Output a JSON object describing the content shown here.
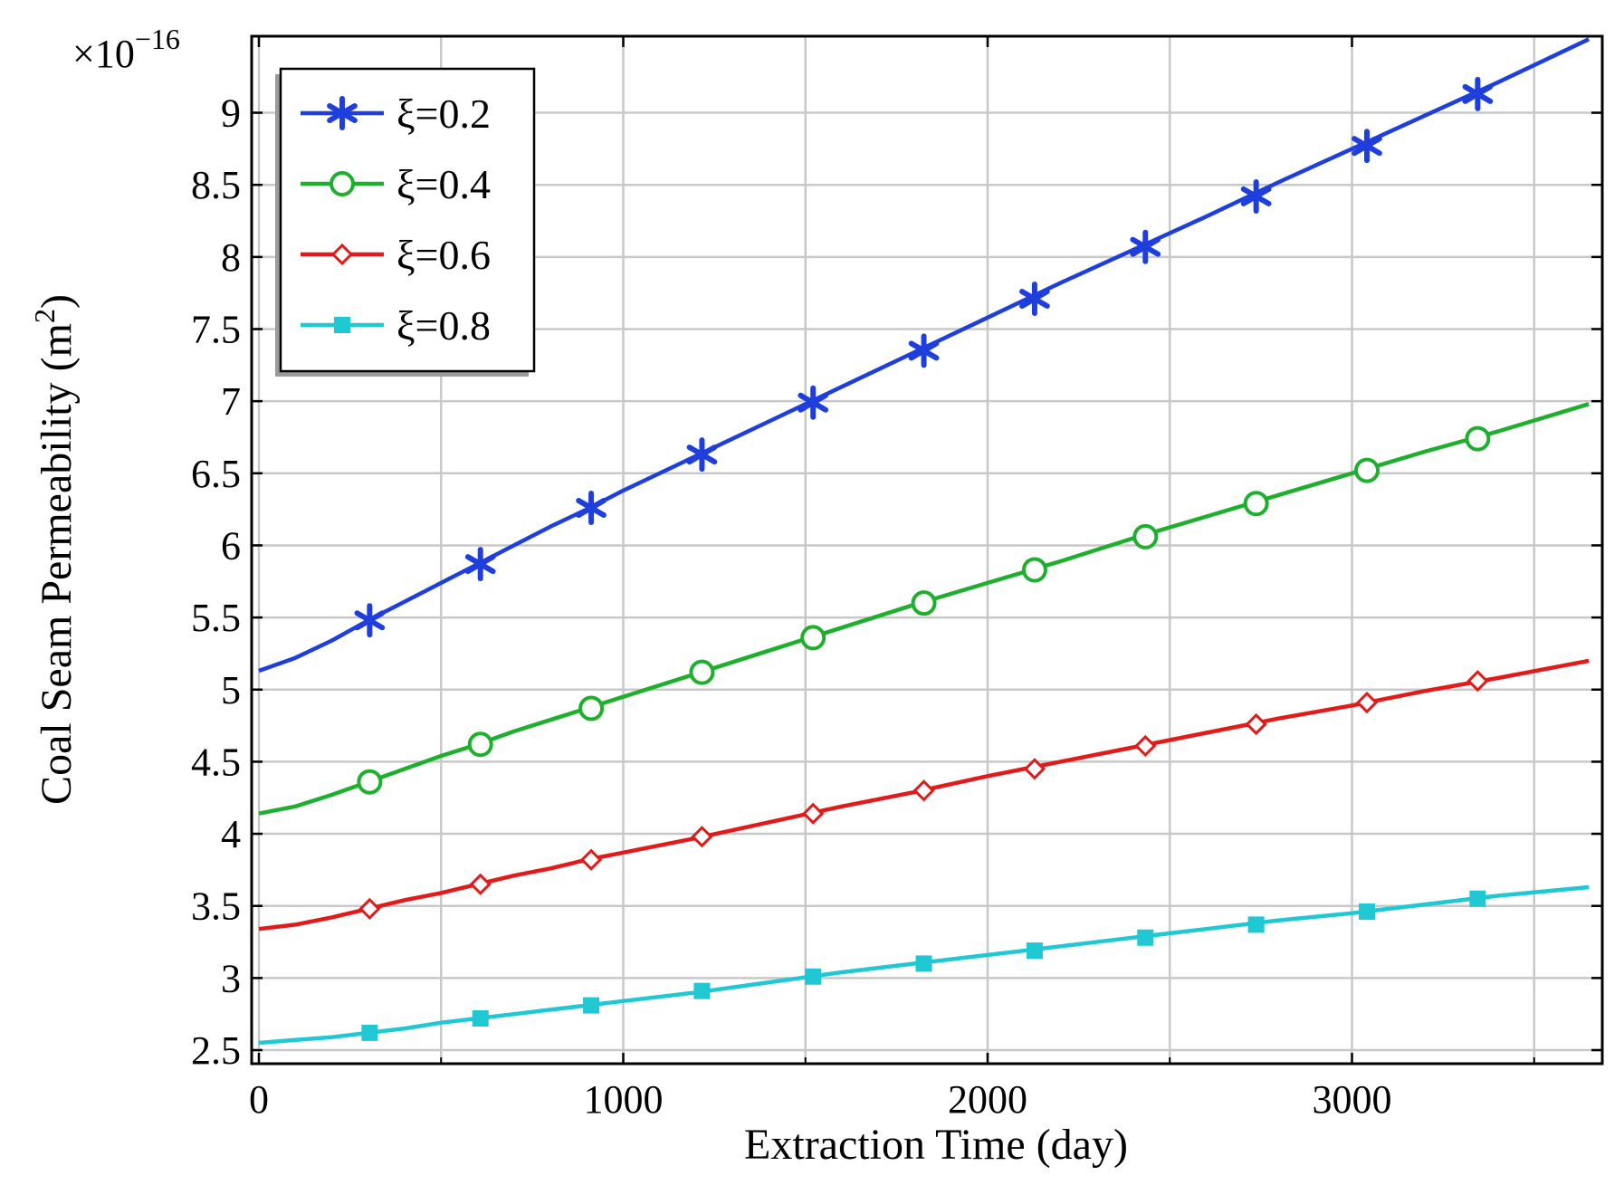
{
  "chart_data": {
    "type": "line",
    "title": "",
    "xlabel": "Extraction Time (day)",
    "ylabel": "Coal Seam Permeability (m²)",
    "ylabel_main": "Coal Seam Permeability (m",
    "ylabel_sup": "2",
    "ylabel_close": ")",
    "y_multiplier_base": "×10",
    "y_multiplier_exp": "−16",
    "xlim": [
      0,
      3650
    ],
    "ylim": [
      2.5,
      9.5
    ],
    "x_ticks": [
      0,
      1000,
      2000,
      3000
    ],
    "x_tick_labels": [
      "0",
      "1000",
      "2000",
      "3000"
    ],
    "y_ticks": [
      2.5,
      3,
      3.5,
      4,
      4.5,
      5,
      5.5,
      6,
      6.5,
      7,
      7.5,
      8,
      8.5,
      9
    ],
    "y_tick_labels": [
      "2.5",
      "3",
      "3.5",
      "4",
      "4.5",
      "5",
      "5.5",
      "6",
      "6.5",
      "7",
      "7.5",
      "8",
      "8.5",
      "9"
    ],
    "x_grid_extra": [
      500,
      1500,
      2500,
      3500
    ],
    "grid": true,
    "legend_position": "top-left",
    "series": [
      {
        "name": "ξ=0.2",
        "color": "#1f3fdc",
        "marker": "asterisk",
        "x": [
          0,
          100,
          200,
          300,
          400,
          500,
          600,
          700,
          800,
          900,
          1000,
          1200,
          1400,
          1600,
          1800,
          2000,
          2200,
          2400,
          2600,
          2800,
          3000,
          3200,
          3400,
          3650
        ],
        "y": [
          5.13,
          5.22,
          5.34,
          5.48,
          5.61,
          5.74,
          5.87,
          6.0,
          6.13,
          6.25,
          6.38,
          6.62,
          6.86,
          7.1,
          7.34,
          7.58,
          7.82,
          8.05,
          8.28,
          8.52,
          8.75,
          8.98,
          9.21,
          9.51
        ],
        "marker_x": [
          304,
          608,
          912,
          1216,
          1521,
          1825,
          2129,
          2433,
          2737,
          3041,
          3345
        ],
        "marker_y": [
          5.48,
          5.87,
          6.26,
          6.63,
          6.99,
          7.35,
          7.71,
          8.07,
          8.42,
          8.77,
          9.13
        ]
      },
      {
        "name": "ξ=0.4",
        "color": "#1faf2f",
        "marker": "circle",
        "x": [
          0,
          100,
          200,
          300,
          400,
          500,
          600,
          700,
          800,
          900,
          1000,
          1200,
          1400,
          1600,
          1800,
          2000,
          2200,
          2400,
          2600,
          2800,
          3000,
          3200,
          3400,
          3650
        ],
        "y": [
          4.14,
          4.19,
          4.27,
          4.36,
          4.45,
          4.54,
          4.62,
          4.71,
          4.79,
          4.87,
          4.95,
          5.11,
          5.27,
          5.43,
          5.59,
          5.74,
          5.89,
          6.05,
          6.2,
          6.35,
          6.5,
          6.65,
          6.79,
          6.98
        ],
        "marker_x": [
          304,
          608,
          912,
          1216,
          1521,
          1825,
          2129,
          2433,
          2737,
          3041,
          3345
        ],
        "marker_y": [
          4.36,
          4.62,
          4.87,
          5.12,
          5.36,
          5.6,
          5.83,
          6.06,
          6.29,
          6.52,
          6.74
        ]
      },
      {
        "name": "ξ=0.6",
        "color": "#e11a1a",
        "marker": "diamond",
        "x": [
          0,
          100,
          200,
          300,
          400,
          500,
          600,
          700,
          800,
          900,
          1000,
          1200,
          1400,
          1600,
          1800,
          2000,
          2200,
          2400,
          2600,
          2800,
          3000,
          3200,
          3400,
          3650
        ],
        "y": [
          3.34,
          3.37,
          3.42,
          3.48,
          3.54,
          3.59,
          3.65,
          3.71,
          3.76,
          3.82,
          3.87,
          3.97,
          4.08,
          4.19,
          4.29,
          4.4,
          4.5,
          4.6,
          4.7,
          4.8,
          4.89,
          4.99,
          5.08,
          5.2
        ],
        "marker_x": [
          304,
          608,
          912,
          1216,
          1521,
          1825,
          2129,
          2433,
          2737,
          3041,
          3345
        ],
        "marker_y": [
          3.48,
          3.65,
          3.82,
          3.98,
          4.14,
          4.3,
          4.45,
          4.61,
          4.76,
          4.91,
          5.06
        ]
      },
      {
        "name": "ξ=0.8",
        "color": "#1fc8d2",
        "marker": "square",
        "x": [
          0,
          100,
          200,
          300,
          400,
          500,
          600,
          700,
          800,
          900,
          1000,
          1200,
          1400,
          1600,
          1800,
          2000,
          2200,
          2400,
          2600,
          2800,
          3000,
          3200,
          3400,
          3650
        ],
        "y": [
          2.55,
          2.57,
          2.59,
          2.62,
          2.65,
          2.69,
          2.72,
          2.75,
          2.78,
          2.81,
          2.84,
          2.9,
          2.97,
          3.04,
          3.1,
          3.16,
          3.22,
          3.28,
          3.34,
          3.4,
          3.45,
          3.51,
          3.57,
          3.63
        ],
        "marker_x": [
          304,
          608,
          912,
          1216,
          1521,
          1825,
          2129,
          2433,
          2737,
          3041,
          3345
        ],
        "marker_y": [
          2.62,
          2.72,
          2.81,
          2.91,
          3.01,
          3.1,
          3.19,
          3.28,
          3.37,
          3.46,
          3.55
        ]
      }
    ]
  }
}
